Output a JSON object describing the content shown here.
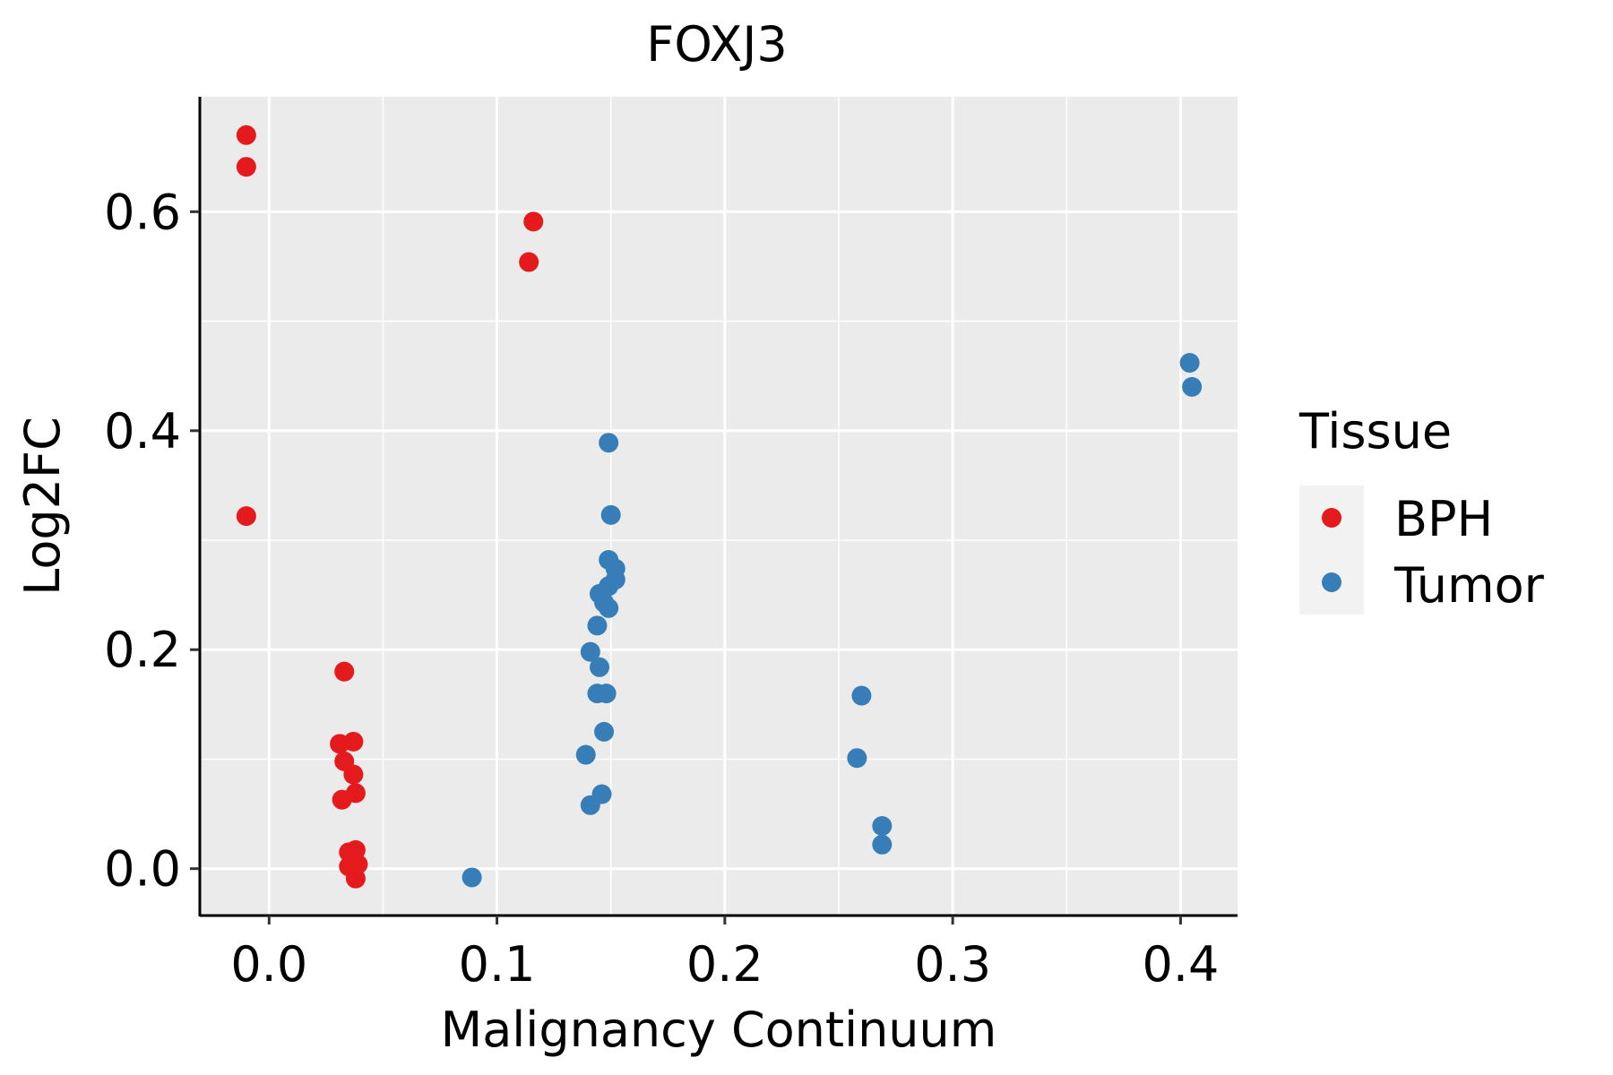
{
  "chart_data": {
    "type": "scatter",
    "title": "FOXJ3",
    "xlabel": "Malignancy Continuum",
    "ylabel": "Log2FC",
    "xlim": [
      -0.03,
      0.425
    ],
    "ylim": [
      -0.042,
      0.705
    ],
    "x_ticks": [
      0.0,
      0.1,
      0.2,
      0.3,
      0.4
    ],
    "x_tick_labels": [
      "0.0",
      "0.1",
      "0.2",
      "0.3",
      "0.4"
    ],
    "y_ticks": [
      0.0,
      0.2,
      0.4,
      0.6
    ],
    "y_tick_labels": [
      "0.0",
      "0.2",
      "0.4",
      "0.6"
    ],
    "grid": true,
    "legend": {
      "title": "Tissue",
      "placement": "right"
    },
    "series": [
      {
        "name": "BPH",
        "color": "#e41a1c",
        "points": [
          [
            -0.01,
            0.67
          ],
          [
            -0.01,
            0.641
          ],
          [
            -0.01,
            0.322
          ],
          [
            0.116,
            0.591
          ],
          [
            0.114,
            0.554
          ],
          [
            0.033,
            0.18
          ],
          [
            0.031,
            0.114
          ],
          [
            0.037,
            0.116
          ],
          [
            0.033,
            0.098
          ],
          [
            0.037,
            0.086
          ],
          [
            0.032,
            0.063
          ],
          [
            0.038,
            0.069
          ],
          [
            0.035,
            0.015
          ],
          [
            0.038,
            0.017
          ],
          [
            0.035,
            0.002
          ],
          [
            0.039,
            0.004
          ],
          [
            0.038,
            -0.009
          ]
        ]
      },
      {
        "name": "Tumor",
        "color": "#377eb8",
        "points": [
          [
            0.404,
            0.462
          ],
          [
            0.405,
            0.44
          ],
          [
            0.149,
            0.389
          ],
          [
            0.15,
            0.323
          ],
          [
            0.149,
            0.282
          ],
          [
            0.152,
            0.274
          ],
          [
            0.152,
            0.264
          ],
          [
            0.149,
            0.258
          ],
          [
            0.145,
            0.251
          ],
          [
            0.147,
            0.243
          ],
          [
            0.149,
            0.238
          ],
          [
            0.144,
            0.222
          ],
          [
            0.141,
            0.198
          ],
          [
            0.145,
            0.184
          ],
          [
            0.144,
            0.16
          ],
          [
            0.148,
            0.16
          ],
          [
            0.147,
            0.125
          ],
          [
            0.139,
            0.104
          ],
          [
            0.146,
            0.068
          ],
          [
            0.141,
            0.058
          ],
          [
            0.089,
            -0.008
          ],
          [
            0.26,
            0.158
          ],
          [
            0.258,
            0.101
          ],
          [
            0.269,
            0.039
          ],
          [
            0.269,
            0.022
          ]
        ]
      }
    ]
  }
}
